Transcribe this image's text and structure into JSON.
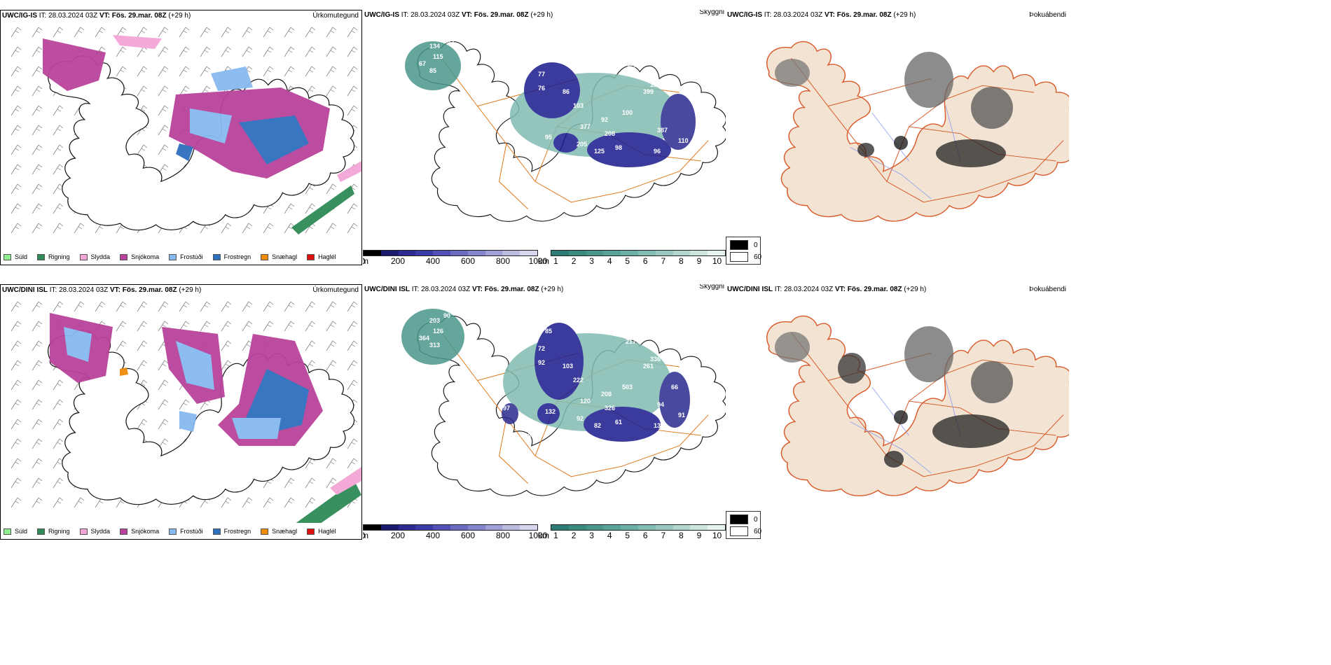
{
  "rows": [
    {
      "model": "UWC/IG-IS",
      "it_label": "IT:",
      "it_value": "28.03.2024 03Z",
      "vt_label": "VT:",
      "vt_value": "Fös. 29.mar. 08Z",
      "lead": "(+29 h)",
      "panel1_name": "Úrkomutegund",
      "panel2_name": "Skyggni",
      "panel3_name": "Þokuábendi",
      "visibility_labels": [
        "134",
        "203",
        "115",
        "67",
        "85",
        "109",
        "77",
        "76",
        "86",
        "103",
        "267",
        "399",
        "188",
        "92",
        "100",
        "95",
        "377",
        "208",
        "125",
        "98",
        "96",
        "387",
        "116",
        "205",
        "110"
      ]
    },
    {
      "model": "UWC/DINI ISL",
      "it_label": "IT:",
      "it_value": "28.03.2024 03Z",
      "vt_label": "VT:",
      "vt_value": "Fös. 29.mar. 08Z",
      "lead": "(+29 h)",
      "panel1_name": "Úrkomutegund",
      "panel2_name": "Skyggni",
      "panel3_name": "Þokuábendi",
      "visibility_labels": [
        "203",
        "90",
        "126",
        "364",
        "313",
        "85",
        "72",
        "92",
        "103",
        "222",
        "217",
        "261",
        "336",
        "208",
        "503",
        "132",
        "120",
        "326",
        "82",
        "61",
        "137",
        "94",
        "97",
        "92",
        "91",
        "66",
        "458",
        "127"
      ]
    }
  ],
  "precip_legend": [
    {
      "label": "Súld",
      "color": "#90ee90"
    },
    {
      "label": "Rigning",
      "color": "#2e8b57"
    },
    {
      "label": "Slydda",
      "color": "#f4a6d7"
    },
    {
      "label": "Snjókoma",
      "color": "#b8439a"
    },
    {
      "label": "Frostúði",
      "color": "#87b9f0"
    },
    {
      "label": "Frostregn",
      "color": "#2f6fbf"
    },
    {
      "label": "Snæhagl",
      "color": "#ef8c0a"
    },
    {
      "label": "Haglél",
      "color": "#e01010"
    }
  ],
  "ceiling_scale": {
    "unit": "m",
    "ticks": [
      "0",
      "200",
      "400",
      "600",
      "800",
      "1000"
    ],
    "colors": [
      "#000000",
      "#1a1a6e",
      "#2a2a90",
      "#3b3ba8",
      "#5050b5",
      "#6b6bc0",
      "#8585cb",
      "#a0a0d6",
      "#bcbce0",
      "#d6d6ee"
    ]
  },
  "visibility_scale": {
    "unit": "km",
    "ticks": [
      "1",
      "2",
      "3",
      "4",
      "5",
      "6",
      "7",
      "8",
      "9",
      "10"
    ],
    "colors": [
      "#2e7d74",
      "#3a8a80",
      "#4a968b",
      "#5aa297",
      "#6dafa4",
      "#82bcb2",
      "#99c9c0",
      "#b2d7cf",
      "#cce5df",
      "#e6f2ef"
    ]
  },
  "fog_key": {
    "values": [
      "0",
      "60"
    ]
  },
  "colors": {
    "land": "#f3e3d3",
    "coast": "#111111",
    "roads": "#e07a20",
    "roads_fog": "#d85a2a",
    "snow": "#b8439a",
    "freezing_drizzle": "#87b9f0",
    "freezing_rain": "#2f6fbf",
    "sleet": "#f4a6d7",
    "rain": "#2e8b57",
    "teal": "#4a968b",
    "navy": "#1a1a8e"
  }
}
